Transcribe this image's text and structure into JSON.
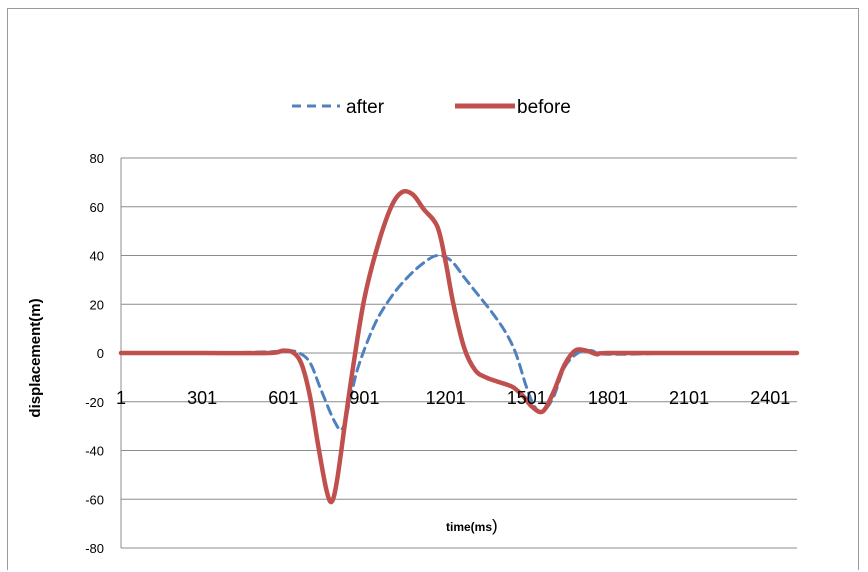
{
  "chart_data": {
    "type": "line",
    "title": "",
    "xlabel": "time(ms",
    "xlabel_suffix": ")",
    "ylabel": "displacement(m)",
    "ylim": [
      -80,
      80
    ],
    "xlim": [
      1,
      2500
    ],
    "y_ticks": [
      "80",
      "60",
      "40",
      "20",
      "0",
      "-20",
      "-40",
      "-60",
      "-80"
    ],
    "x_ticks": [
      "1",
      "301",
      "601",
      "901",
      "1201",
      "1501",
      "1801",
      "2101",
      "2401"
    ],
    "legend_position": "top",
    "grid": true,
    "series": [
      {
        "name": "after",
        "color": "#4F81BD",
        "style": "dashed",
        "x": [
          1,
          300,
          550,
          620,
          660,
          700,
          740,
          790,
          820,
          850,
          880,
          940,
          1000,
          1060,
          1120,
          1170,
          1220,
          1270,
          1320,
          1370,
          1420,
          1460,
          1500,
          1530,
          1560,
          1600,
          1640,
          1690,
          1740,
          1800,
          2100,
          2500
        ],
        "y": [
          0,
          0,
          0.5,
          1,
          0,
          -4,
          -15,
          -28,
          -31,
          -18,
          -5,
          12,
          23,
          31,
          37,
          40,
          38,
          31,
          24,
          17,
          9,
          0,
          -14,
          -22,
          -24,
          -18,
          -6,
          0,
          1,
          -0.5,
          0,
          0
        ]
      },
      {
        "name": "before",
        "color": "#C0504D",
        "style": "solid",
        "x": [
          1,
          300,
          550,
          600,
          640,
          670,
          700,
          730,
          760,
          780,
          800,
          830,
          860,
          900,
          950,
          1000,
          1040,
          1080,
          1120,
          1170,
          1200,
          1230,
          1270,
          1310,
          1350,
          1400,
          1450,
          1490,
          1520,
          1560,
          1600,
          1640,
          1680,
          1720,
          1760,
          1800,
          2100,
          2500
        ],
        "y": [
          0,
          0,
          0,
          1,
          0,
          -5,
          -18,
          -38,
          -56,
          -61,
          -52,
          -28,
          -5,
          22,
          44,
          60,
          66,
          65,
          59,
          52,
          38,
          20,
          2,
          -7,
          -10,
          -12,
          -14,
          -18,
          -22,
          -24,
          -16,
          -5,
          1,
          1,
          -0.5,
          0,
          0,
          0
        ]
      }
    ]
  }
}
